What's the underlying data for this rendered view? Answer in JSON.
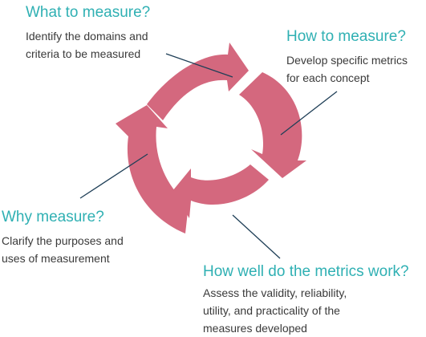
{
  "colors": {
    "arrow_fill": "#d4687e",
    "heading": "#2fb0b3",
    "leader_line": "#1f3f57",
    "body_text": "#3a3a3a"
  },
  "steps": [
    {
      "heading": "What to measure?",
      "description": "Identify the domains and\ncriteria to be measured"
    },
    {
      "heading": "How to measure?",
      "description": "Develop specific metrics\nfor each concept"
    },
    {
      "heading": "How well do the metrics work?",
      "description": "Assess the validity, reliability,\nutility, and practicality of the\nmeasures developed"
    },
    {
      "heading": "Why measure?",
      "description": "Clarify the purposes and\nuses of measurement"
    }
  ]
}
